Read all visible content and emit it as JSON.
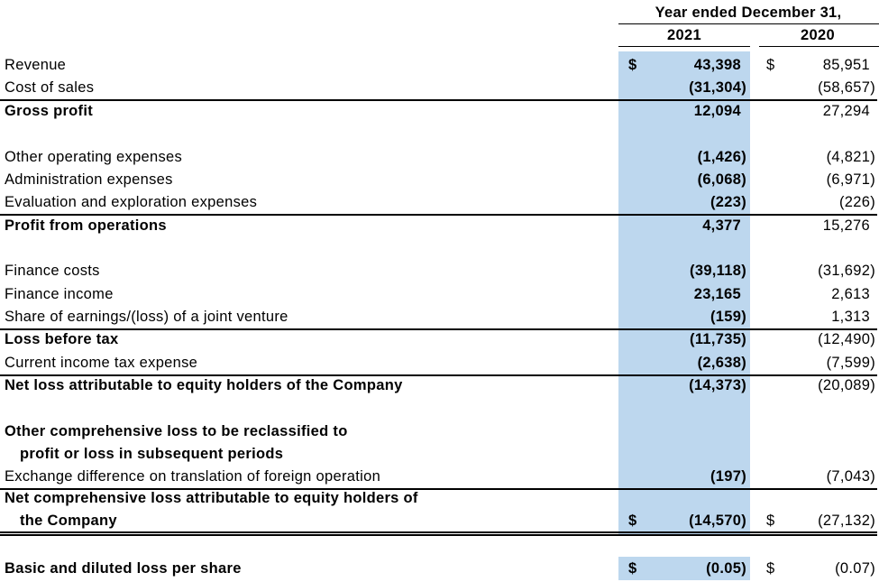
{
  "header": {
    "title": "Year ended December 31,",
    "columns": [
      "2021",
      "2020"
    ]
  },
  "rows": [
    {
      "label": [
        "Revenue"
      ],
      "currency": [
        "$",
        "$"
      ],
      "values": [
        "43,398",
        "85,951"
      ]
    },
    {
      "label": [
        "Cost of sales"
      ],
      "values": [
        "(31,304)",
        "(58,657)"
      ],
      "rule": "single"
    },
    {
      "label": [
        "Gross profit"
      ],
      "bold": true,
      "values": [
        "12,094",
        "27,294"
      ]
    },
    {
      "label": [
        "Other operating expenses"
      ],
      "values": [
        "(1,426)",
        "(4,821)"
      ]
    },
    {
      "label": [
        "Administration expenses"
      ],
      "values": [
        "(6,068)",
        "(6,971)"
      ]
    },
    {
      "label": [
        "Evaluation and exploration expenses"
      ],
      "values": [
        "(223)",
        "(226)"
      ],
      "rule": "single"
    },
    {
      "label": [
        "Profit from operations"
      ],
      "bold": true,
      "values": [
        "4,377",
        "15,276"
      ]
    },
    {
      "label": [
        "Finance costs"
      ],
      "values": [
        "(39,118)",
        "(31,692)"
      ]
    },
    {
      "label": [
        "Finance income"
      ],
      "values": [
        "23,165",
        "2,613"
      ]
    },
    {
      "label": [
        "Share of earnings/(loss) of a joint venture"
      ],
      "values": [
        "(159)",
        "1,313"
      ],
      "rule": "single"
    },
    {
      "label": [
        "Loss before tax"
      ],
      "bold": true,
      "values": [
        "(11,735)",
        "(12,490)"
      ]
    },
    {
      "label": [
        "Current income tax expense"
      ],
      "values": [
        "(2,638)",
        "(7,599)"
      ],
      "rule": "single"
    },
    {
      "label": [
        "Net loss attributable to equity holders of the Company"
      ],
      "bold": true,
      "values": [
        "(14,373)",
        "(20,089)"
      ]
    },
    {
      "label": [
        "Other comprehensive loss to be reclassified to",
        "profit or loss in subsequent periods"
      ],
      "bold": true
    },
    {
      "label": [
        "Exchange difference on translation of foreign operation"
      ],
      "values": [
        "(197)",
        "(7,043)"
      ],
      "rule": "single"
    },
    {
      "label": [
        "Net comprehensive loss attributable to equity holders of",
        "the Company"
      ],
      "bold": true,
      "currency": [
        "$",
        "$"
      ],
      "values": [
        "(14,570)",
        "(27,132)"
      ],
      "rule": "double"
    },
    {
      "label": [
        "Basic and diluted loss per share"
      ],
      "bold": true,
      "currency": [
        "$",
        "$"
      ],
      "values": [
        "(0.05)",
        "(0.07)"
      ]
    }
  ]
}
